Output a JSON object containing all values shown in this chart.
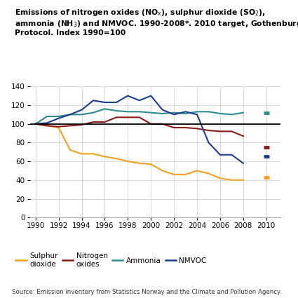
{
  "source": "Source: Emission inventory from Statistics Norway and the Climate and Pollution Agency.",
  "years": [
    1990,
    1991,
    1992,
    1993,
    1994,
    1995,
    1996,
    1997,
    1998,
    1999,
    2000,
    2001,
    2002,
    2003,
    2004,
    2005,
    2006,
    2007,
    2008
  ],
  "sulphur_dioxide": [
    100,
    98,
    96,
    72,
    68,
    68,
    65,
    63,
    60,
    58,
    57,
    50,
    46,
    46,
    50,
    47,
    42,
    40,
    40
  ],
  "nitrogen_oxides": [
    100,
    98,
    97,
    98,
    99,
    102,
    102,
    107,
    107,
    107,
    100,
    100,
    96,
    96,
    95,
    93,
    92,
    92,
    87
  ],
  "ammonia": [
    100,
    108,
    108,
    110,
    110,
    112,
    116,
    114,
    113,
    113,
    112,
    111,
    112,
    111,
    113,
    113,
    111,
    110,
    112
  ],
  "nmvoc": [
    100,
    101,
    106,
    110,
    115,
    125,
    123,
    123,
    130,
    125,
    130,
    115,
    110,
    113,
    110,
    80,
    67,
    67,
    58
  ],
  "sulphur_dioxide_2010": 43,
  "nitrogen_oxides_2010": 75,
  "ammonia_2010": 112,
  "nmvoc_2010": 65,
  "sulphur_color": "#F4A020",
  "nitrogen_color": "#8B1A1A",
  "ammonia_color": "#2E8B8B",
  "nmvoc_color": "#1C3C8C",
  "ylim": [
    0,
    140
  ],
  "yticks": [
    0,
    20,
    40,
    60,
    80,
    100,
    120,
    140
  ],
  "xticks": [
    1990,
    1992,
    1994,
    1996,
    1998,
    2000,
    2002,
    2004,
    2006,
    2008,
    2010
  ],
  "reference_line": 100
}
